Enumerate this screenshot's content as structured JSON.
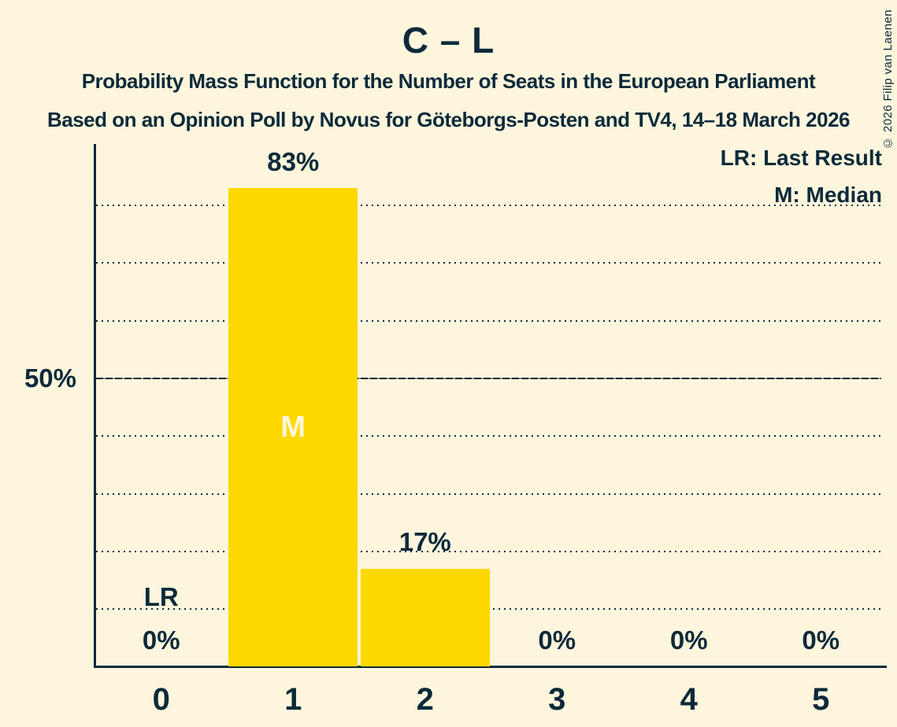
{
  "header": {
    "title": "C – L",
    "subtitle1": "Probability Mass Function for the Number of Seats in the European Parliament",
    "subtitle2": "Based on an Opinion Poll by Novus for Göteborgs-Posten and TV4, 14–18 March 2026"
  },
  "copyright": "© 2026 Filip van Laenen",
  "legend": {
    "last_result": "LR: Last Result",
    "median": "M: Median"
  },
  "colors": {
    "background": "#fdf6dd",
    "ink": "#0d2a3a",
    "bar": "#ffd800"
  },
  "chart_data": {
    "type": "bar",
    "title": "C – L",
    "xlabel": "",
    "ylabel": "",
    "categories": [
      "0",
      "1",
      "2",
      "3",
      "4",
      "5"
    ],
    "values": [
      0,
      83,
      17,
      0,
      0,
      0
    ],
    "value_labels": [
      "0%",
      "83%",
      "17%",
      "0%",
      "0%",
      "0%"
    ],
    "y_tick_label": "50%",
    "y_tick_value": 50,
    "dotted_gridlines_pct": [
      10,
      20,
      30,
      40,
      60,
      70,
      80
    ],
    "solid_line_pct": 50,
    "ylim": [
      0,
      91
    ],
    "grid": "horizontal dotted",
    "legend_position": "top-right",
    "bar_color": "#ffd800",
    "median_category_index": 1,
    "median_marker": "M",
    "last_result_category_index": 0,
    "last_result_marker": "LR"
  }
}
